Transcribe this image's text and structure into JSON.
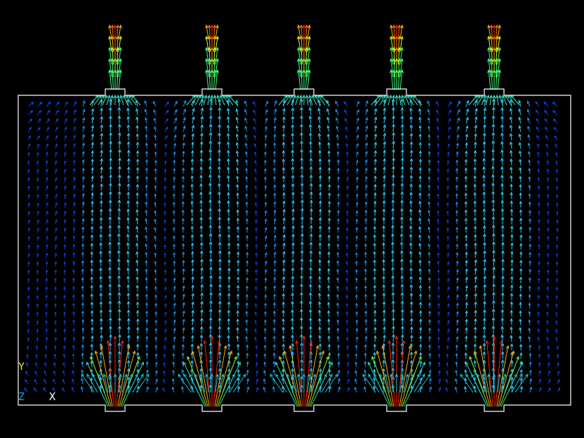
{
  "triad": {
    "y_label": "Y",
    "z_label": "Z",
    "x_label": "X"
  }
}
